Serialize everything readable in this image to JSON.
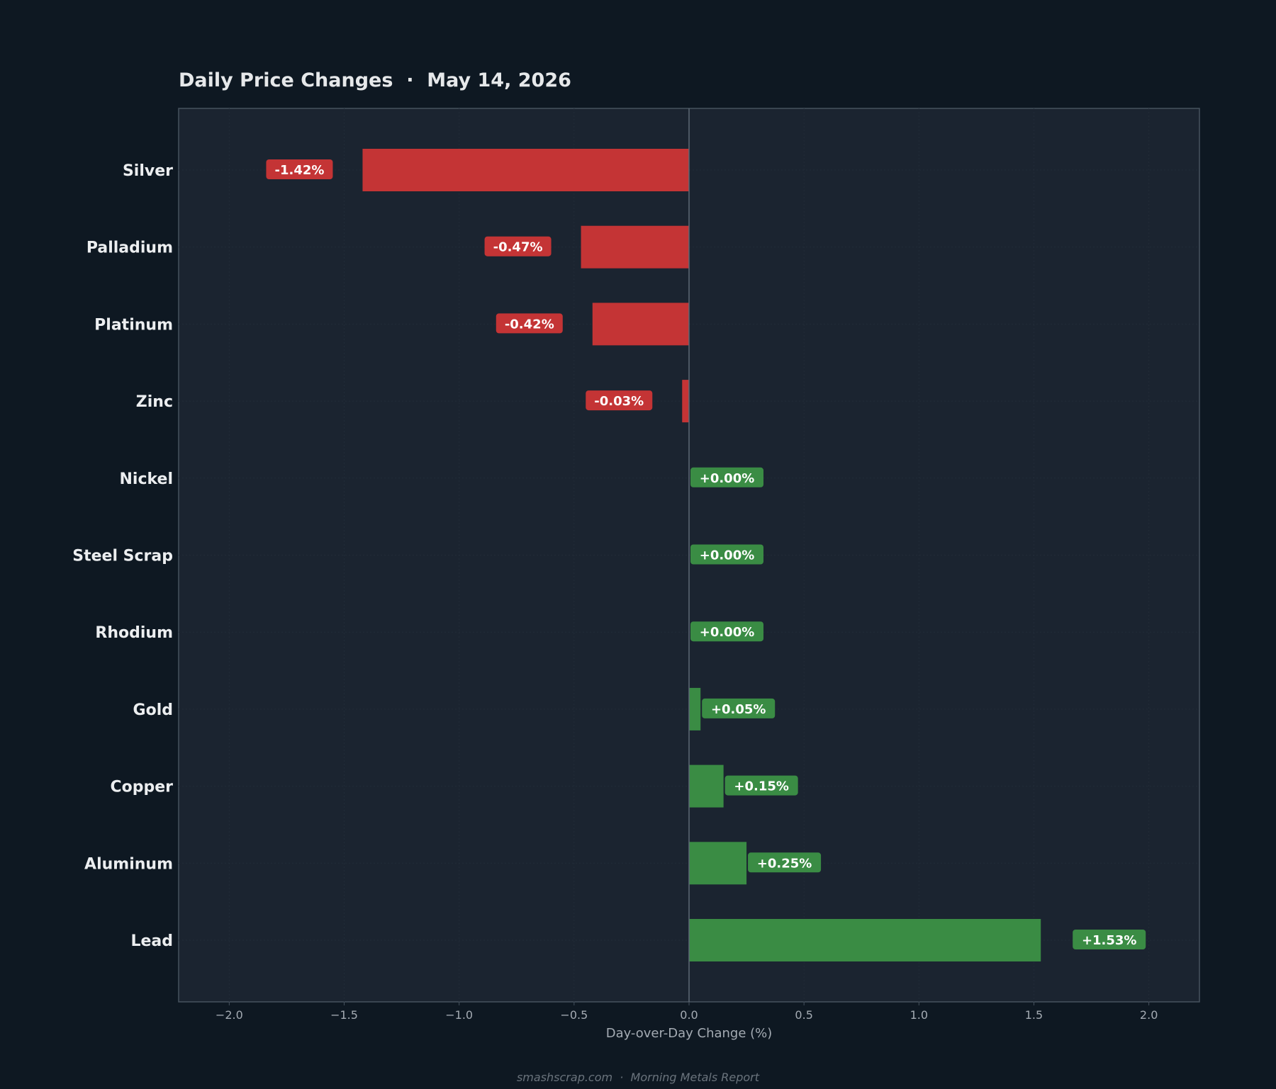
{
  "colors": {
    "background": "#0e1822",
    "plot_background": "#1b2430",
    "plot_border": "#46525e",
    "negative": "#c43435",
    "positive": "#3a8c44"
  },
  "footer": {
    "text": "smashscrap.com  ·  Morning Metals Report"
  },
  "chart_data": {
    "type": "bar",
    "orientation": "horizontal",
    "title": "Daily Price Changes  ·  May 14, 2026",
    "xlabel": "Day-over-Day Change (%)",
    "ylabel": "",
    "xlim": [
      -2.22,
      2.22
    ],
    "xticks": [
      -2.0,
      -1.5,
      -1.0,
      -0.5,
      0.0,
      0.5,
      1.0,
      1.5,
      2.0
    ],
    "xtick_labels": [
      "−2.0",
      "−1.5",
      "−1.0",
      "−0.5",
      "0.0",
      "0.5",
      "1.0",
      "1.5",
      "2.0"
    ],
    "grid": true,
    "categories": [
      "Silver",
      "Palladium",
      "Platinum",
      "Zinc",
      "Nickel",
      "Steel Scrap",
      "Rhodium",
      "Gold",
      "Copper",
      "Aluminum",
      "Lead"
    ],
    "values": [
      -1.42,
      -0.47,
      -0.42,
      -0.03,
      0.0,
      0.0,
      0.0,
      0.05,
      0.15,
      0.25,
      1.53
    ],
    "data_labels": [
      "-1.42%",
      "-0.47%",
      "-0.42%",
      "-0.03%",
      "+0.00%",
      "+0.00%",
      "+0.00%",
      "+0.05%",
      "+0.15%",
      "+0.25%",
      "+1.53%"
    ]
  }
}
